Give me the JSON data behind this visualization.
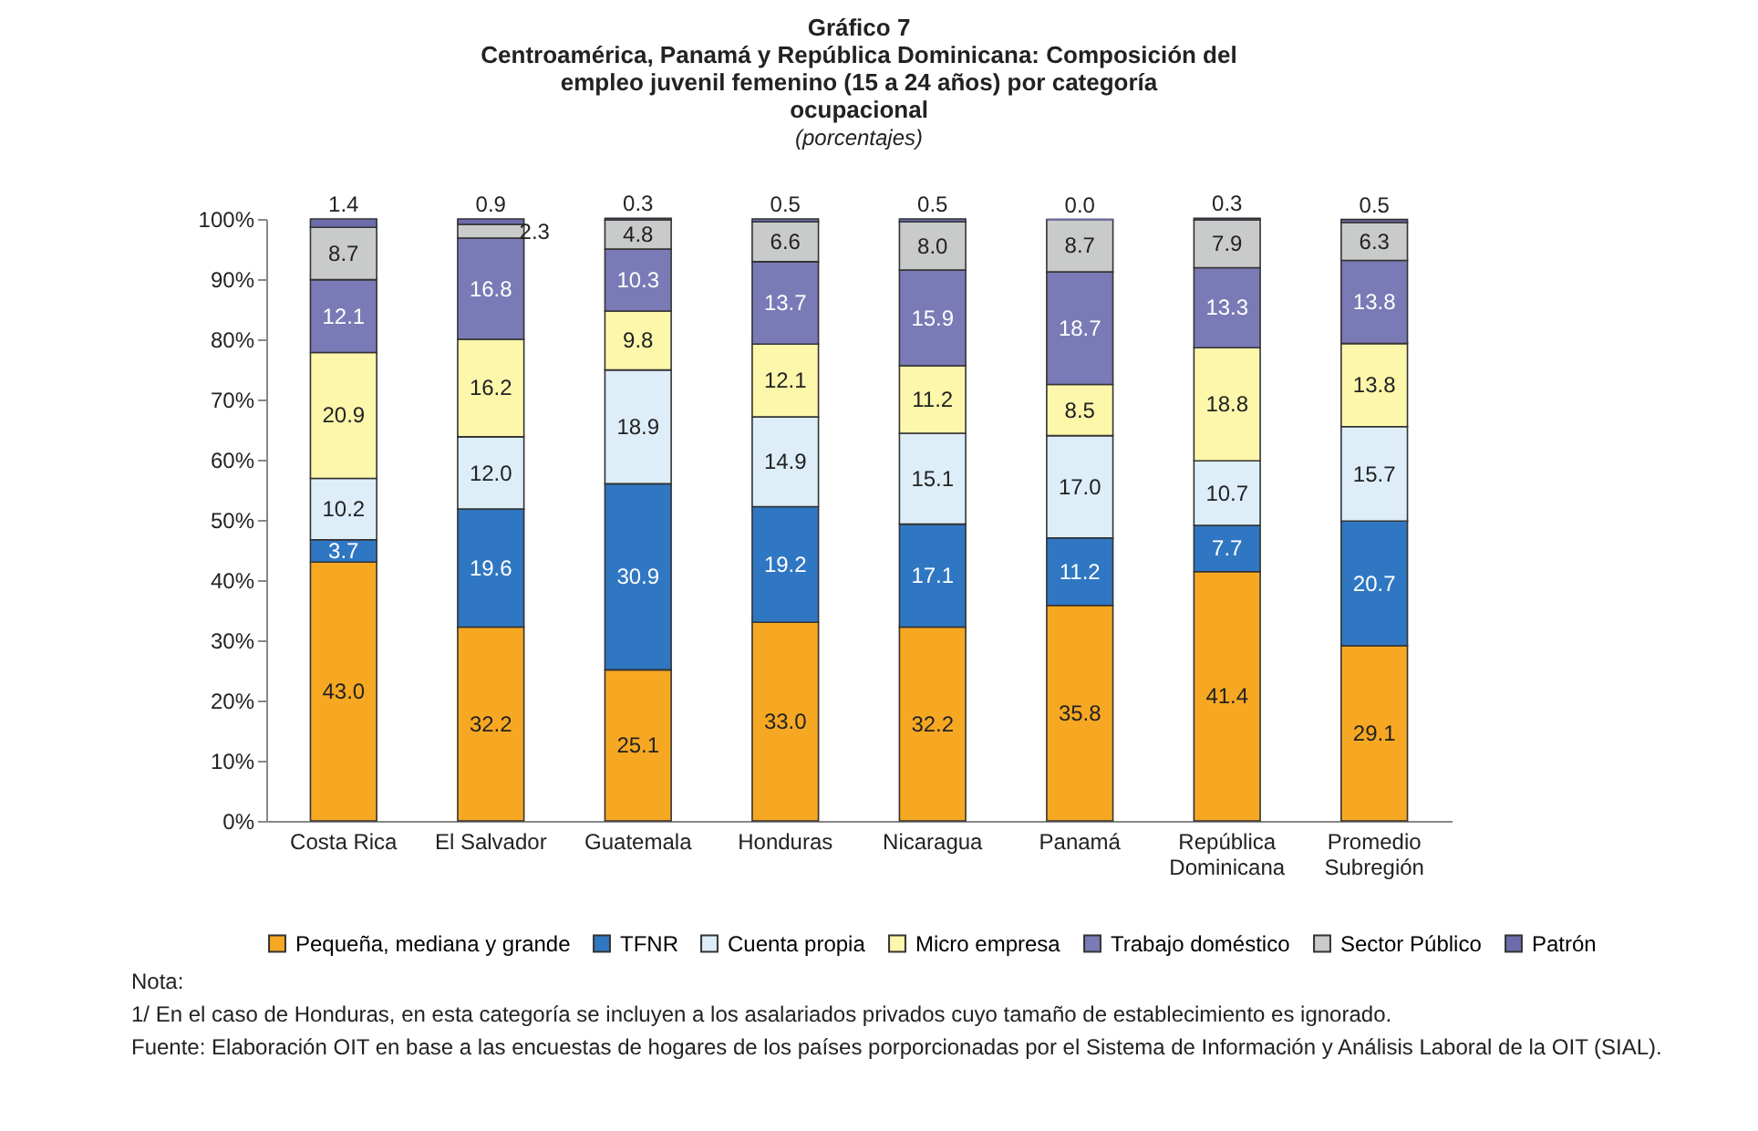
{
  "chart_data": {
    "type": "bar",
    "stacked": true,
    "title": "Gráfico 7",
    "subtitle": "Centroamérica, Panamá y República Dominicana: Composición del empleo juvenil femenino (15 a 24 años) por categoría ocupacional",
    "annotations": [
      "(porcentajes)",
      "Nota:",
      "1/ En el caso de Honduras, en esta categoría se incluyen a los asalariados privados cuyo tamaño de establecimiento es ignorado.",
      "Fuente: Elaboración OIT en base a las encuestas de hogares de los países porporcionadas por el Sistema de Información y Análisis Laboral de la OIT (SIAL)."
    ],
    "categories": [
      "Costa Rica",
      "El Salvador",
      "Guatemala",
      "Honduras",
      "Nicaragua",
      "Panamá",
      "República Dominicana",
      "Promedio Subregión"
    ],
    "series": [
      {
        "name": "Pequeña, mediana y grande",
        "color": "#f7a823",
        "values": [
          43.0,
          32.2,
          25.1,
          33.0,
          32.2,
          35.8,
          41.4,
          29.1
        ],
        "value_labels": [
          "43.0",
          "32.2",
          "25.1",
          "33.0",
          "32.2",
          "35.8",
          "41.4",
          "29.1"
        ]
      },
      {
        "name": "TFNR",
        "color": "#2f77c2",
        "values": [
          3.7,
          19.6,
          30.9,
          19.2,
          17.1,
          11.2,
          7.7,
          20.7
        ],
        "value_labels": [
          "3.7",
          "19.6",
          "30.9",
          "19.2",
          "17.1",
          "11.2",
          "7.7",
          "20.7"
        ]
      },
      {
        "name": "Cuenta propia",
        "color": "#ddeef9",
        "values": [
          10.2,
          12.0,
          18.9,
          14.9,
          15.1,
          17.0,
          10.7,
          15.7
        ],
        "value_labels": [
          "10.2",
          "12.0",
          "18.9",
          "14.9",
          "15.1",
          "17.0",
          "10.7",
          "15.7"
        ]
      },
      {
        "name": "Micro empresa",
        "color": "#fdf7ab",
        "values": [
          20.9,
          16.2,
          9.8,
          12.1,
          11.2,
          8.5,
          18.8,
          13.8
        ],
        "value_labels": [
          "20.9",
          "16.2",
          "9.8",
          "12.1",
          "11.2",
          "8.5",
          "18.8",
          "13.8"
        ]
      },
      {
        "name": "Trabajo doméstico",
        "color": "#7a7ab6",
        "values": [
          12.1,
          16.8,
          10.3,
          13.7,
          15.9,
          18.7,
          13.3,
          13.8
        ],
        "value_labels": [
          "12.1",
          "16.8",
          "10.3",
          "13.7",
          "15.9",
          "18.7",
          "13.3",
          "13.8"
        ]
      },
      {
        "name": "Sector Público",
        "color": "#c9caca",
        "values": [
          8.7,
          2.3,
          4.8,
          6.6,
          8.0,
          8.7,
          7.9,
          6.3
        ],
        "value_labels": [
          "8.7",
          "2.3",
          "4.8",
          "6.6",
          "8.0",
          "8.7",
          "7.9",
          "6.3"
        ]
      },
      {
        "name": "Patrón",
        "color": "#6c6cac",
        "values": [
          1.4,
          0.9,
          0.3,
          0.5,
          0.5,
          0.0,
          0.3,
          0.5
        ],
        "value_labels": [
          "1.4",
          "0.9",
          "0.3",
          "0.5",
          "0.5",
          "0.0",
          "0.3",
          "0.5"
        ]
      }
    ],
    "ylim": [
      0,
      100
    ],
    "yticks": [
      {
        "value": 0,
        "label": "0%"
      },
      {
        "value": 10,
        "label": "10%"
      },
      {
        "value": 20,
        "label": "20%"
      },
      {
        "value": 30,
        "label": "30%"
      },
      {
        "value": 40,
        "label": "40%"
      },
      {
        "value": 50,
        "label": "50%"
      },
      {
        "value": 60,
        "label": "60%"
      },
      {
        "value": 70,
        "label": "70%"
      },
      {
        "value": 80,
        "label": "80%"
      },
      {
        "value": 90,
        "label": "90%"
      },
      {
        "value": 100,
        "label": "100%"
      }
    ],
    "legend": "bottom",
    "grid": false
  }
}
